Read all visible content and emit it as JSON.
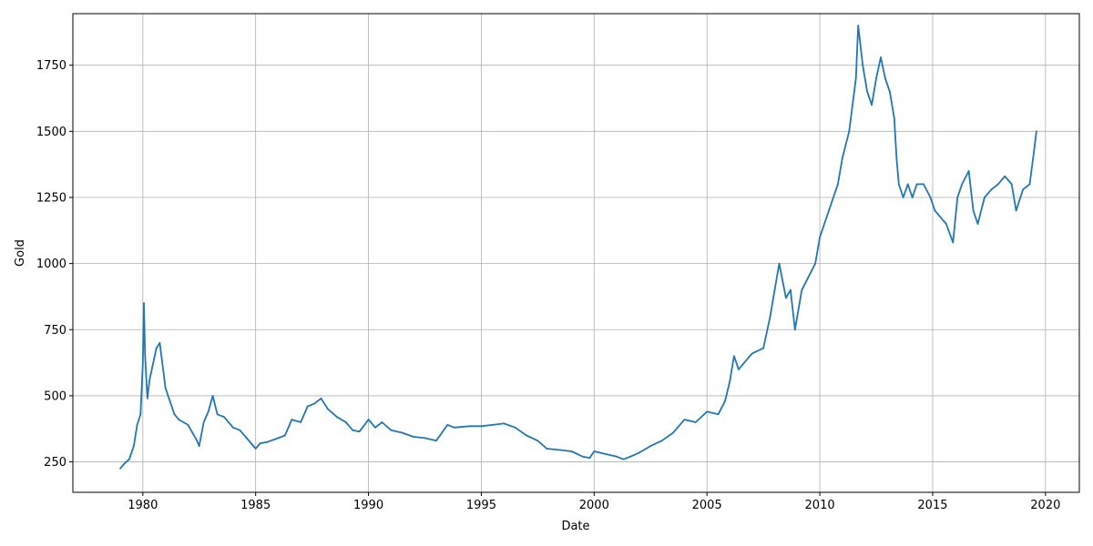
{
  "chart_data": {
    "type": "line",
    "title": "",
    "xlabel": "Date",
    "ylabel": "Gold",
    "xlim": [
      1976.9,
      2021.5
    ],
    "ylim": [
      135,
      1945
    ],
    "grid": true,
    "legend": "none",
    "x_ticks": [
      1980,
      1985,
      1990,
      1995,
      2000,
      2005,
      2010,
      2015,
      2020
    ],
    "x_tick_labels": [
      "1980",
      "1985",
      "1990",
      "1995",
      "2000",
      "2005",
      "2010",
      "2015",
      "2020"
    ],
    "y_ticks": [
      250,
      500,
      750,
      1000,
      1250,
      1500,
      1750
    ],
    "y_tick_labels": [
      "250",
      "500",
      "750",
      "1000",
      "1250",
      "1500",
      "1750"
    ],
    "series": [
      {
        "color": "#1f77b4",
        "x": [
          1979.0,
          1979.2,
          1979.4,
          1979.6,
          1979.75,
          1979.9,
          1980.0,
          1980.05,
          1980.1,
          1980.2,
          1980.3,
          1980.5,
          1980.6,
          1980.75,
          1980.9,
          1981.0,
          1981.2,
          1981.4,
          1981.6,
          1981.8,
          1982.0,
          1982.2,
          1982.4,
          1982.5,
          1982.7,
          1982.9,
          1983.1,
          1983.3,
          1983.6,
          1984.0,
          1984.3,
          1984.6,
          1985.0,
          1985.2,
          1985.5,
          1986.0,
          1986.3,
          1986.6,
          1987.0,
          1987.3,
          1987.6,
          1987.9,
          1988.2,
          1988.6,
          1989.0,
          1989.3,
          1989.6,
          1990.0,
          1990.3,
          1990.6,
          1991.0,
          1991.5,
          1992.0,
          1992.5,
          1993.0,
          1993.5,
          1993.8,
          1994.5,
          1995.0,
          1995.5,
          1996.0,
          1996.5,
          1997.0,
          1997.5,
          1997.9,
          1998.5,
          1999.0,
          1999.5,
          1999.8,
          2000.0,
          2000.5,
          2001.0,
          2001.3,
          2001.6,
          2002.0,
          2002.5,
          2003.0,
          2003.5,
          2004.0,
          2004.5,
          2005.0,
          2005.5,
          2005.8,
          2006.0,
          2006.2,
          2006.4,
          2006.6,
          2007.0,
          2007.5,
          2007.8,
          2008.0,
          2008.2,
          2008.5,
          2008.7,
          2008.9,
          2009.2,
          2009.5,
          2009.8,
          2010.0,
          2010.4,
          2010.8,
          2011.0,
          2011.3,
          2011.6,
          2011.7,
          2011.9,
          2012.1,
          2012.3,
          2012.5,
          2012.7,
          2012.9,
          2013.1,
          2013.3,
          2013.4,
          2013.5,
          2013.7,
          2013.9,
          2014.1,
          2014.3,
          2014.6,
          2014.9,
          2015.1,
          2015.3,
          2015.6,
          2015.9,
          2016.1,
          2016.3,
          2016.6,
          2016.8,
          2017.0,
          2017.3,
          2017.6,
          2017.9,
          2018.2,
          2018.5,
          2018.7,
          2019.0,
          2019.3,
          2019.5,
          2019.6
        ],
        "y": [
          225,
          245,
          260,
          310,
          390,
          430,
          620,
          850,
          650,
          490,
          560,
          640,
          680,
          700,
          600,
          530,
          480,
          430,
          410,
          400,
          390,
          360,
          330,
          310,
          400,
          440,
          500,
          430,
          420,
          380,
          370,
          340,
          300,
          320,
          325,
          340,
          350,
          410,
          400,
          460,
          470,
          490,
          450,
          420,
          400,
          370,
          365,
          410,
          380,
          400,
          370,
          360,
          345,
          340,
          330,
          390,
          380,
          385,
          385,
          390,
          395,
          380,
          350,
          330,
          300,
          295,
          290,
          270,
          265,
          290,
          280,
          270,
          260,
          270,
          285,
          310,
          330,
          360,
          410,
          400,
          440,
          430,
          480,
          550,
          650,
          600,
          620,
          660,
          680,
          800,
          900,
          1000,
          870,
          900,
          750,
          900,
          950,
          1000,
          1100,
          1200,
          1300,
          1400,
          1500,
          1700,
          1900,
          1750,
          1650,
          1600,
          1700,
          1780,
          1700,
          1650,
          1550,
          1400,
          1300,
          1250,
          1300,
          1250,
          1300,
          1300,
          1250,
          1200,
          1180,
          1150,
          1080,
          1250,
          1300,
          1350,
          1200,
          1150,
          1250,
          1280,
          1300,
          1330,
          1300,
          1200,
          1280,
          1300,
          1430,
          1500
        ]
      }
    ]
  }
}
